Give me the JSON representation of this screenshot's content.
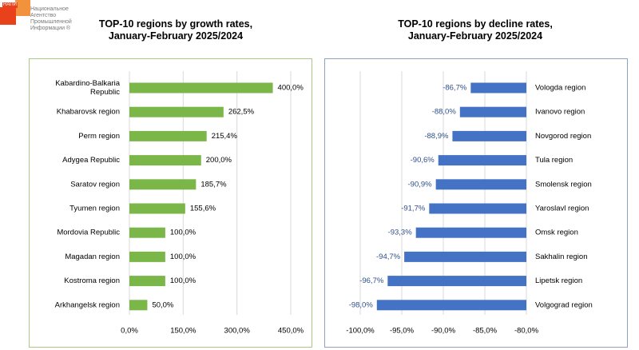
{
  "logo": {
    "abbr": "НАПИ",
    "lines": [
      "Национальное",
      "Агентство",
      "Промышленной",
      "Информации ®"
    ]
  },
  "titles": {
    "left": [
      "TOP-10 regions by growth rates,",
      "January-February 2025/2024"
    ],
    "right": [
      "TOP-10 regions by decline rates,",
      "January-February 2025/2024"
    ]
  },
  "colors": {
    "growth_bar": "#7ab648",
    "decline_bar": "#4472c4",
    "decline_label": "#2f4f8a"
  },
  "chart_data": [
    {
      "type": "bar",
      "orientation": "horizontal",
      "title": "TOP-10 regions by growth rates, January-February 2025/2024",
      "categories": [
        "Kabardino-Balkaria Republic",
        "Khabarovsk region",
        "Perm region",
        "Adygea Republic",
        "Saratov region",
        "Tyumen region",
        "Mordovia Republic",
        "Magadan region",
        "Kostroma region",
        "Arkhangelsk region"
      ],
      "values": [
        400.0,
        262.5,
        215.4,
        200.0,
        185.7,
        155.6,
        100.0,
        100.0,
        100.0,
        50.0
      ],
      "value_labels": [
        "400,0%",
        "262,5%",
        "215,4%",
        "200,0%",
        "185,7%",
        "155,6%",
        "100,0%",
        "100,0%",
        "100,0%",
        "50,0%"
      ],
      "xlim": [
        0,
        450
      ],
      "xticks": [
        "0,0%",
        "150,0%",
        "300,0%",
        "450,0%"
      ],
      "grid": true
    },
    {
      "type": "bar",
      "orientation": "horizontal",
      "title": "TOP-10 regions by decline rates, January-February 2025/2024",
      "categories": [
        "Vologda region",
        "Ivanovo region",
        "Novgorod region",
        "Tula region",
        "Smolensk region",
        "Yaroslavl region",
        "Omsk region",
        "Sakhalin region",
        "Lipetsk region",
        "Volgograd region"
      ],
      "values": [
        -86.7,
        -88.0,
        -88.9,
        -90.6,
        -90.9,
        -91.7,
        -93.3,
        -94.7,
        -96.7,
        -98.0
      ],
      "value_labels": [
        "-86,7%",
        "-88,0%",
        "-88,9%",
        "-90,6%",
        "-90,9%",
        "-91,7%",
        "-93,3%",
        "-94,7%",
        "-96,7%",
        "-98,0%"
      ],
      "xlim": [
        -100,
        -80
      ],
      "xticks": [
        "-100,0%",
        "-95,0%",
        "-90,0%",
        "-85,0%",
        "-80,0%"
      ],
      "grid": true
    }
  ]
}
